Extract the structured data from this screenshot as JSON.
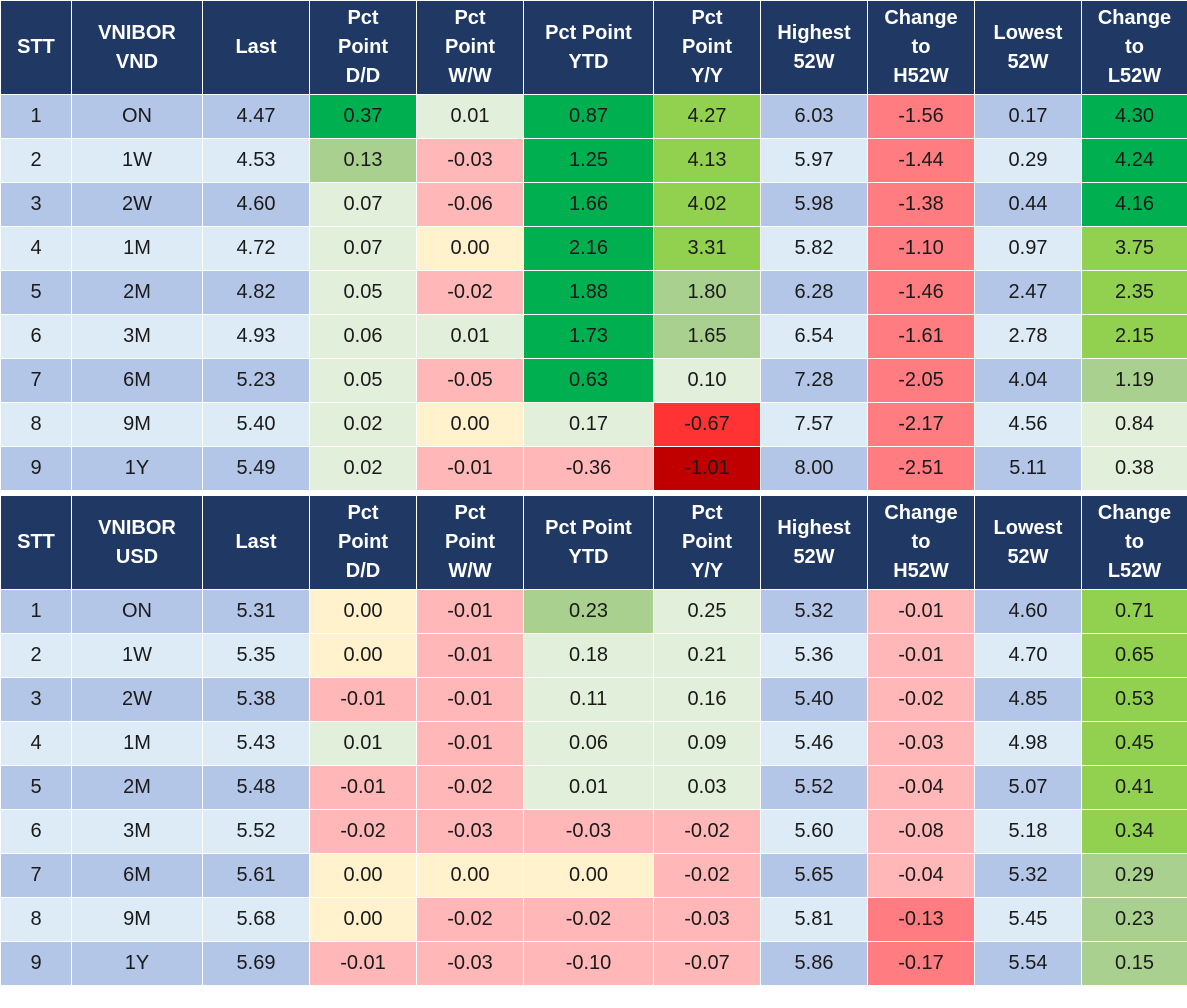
{
  "colors": {
    "header_bg": "#1f3864",
    "label_odd": "#b4c6e7",
    "label_even": "#ddebf7",
    "strong_green": "#00b050",
    "light_green": "#92d050",
    "olive_green": "#a9d08e",
    "pale_green": "#e2efda",
    "neutral_yellow": "#fff2cc",
    "pale_red": "#ffb7b7",
    "red": "#ff7c80",
    "strong_red": "#ff3333",
    "dark_red": "#c00000"
  },
  "tables": [
    {
      "headers": [
        "STT",
        "VNIBOR\nVND",
        "Last",
        "Pct\nPoint\nD/D",
        "Pct\nPoint\nW/W",
        "Pct Point\nYTD",
        "Pct\nPoint\nY/Y",
        "Highest\n52W",
        "Change\nto\nH52W",
        "Lowest\n52W",
        "Change\nto\nL52W"
      ],
      "rows": [
        [
          "1",
          "ON",
          "4.47",
          "0.37",
          "0.01",
          "0.87",
          "4.27",
          "6.03",
          "-1.56",
          "0.17",
          "4.30"
        ],
        [
          "2",
          "1W",
          "4.53",
          "0.13",
          "-0.03",
          "1.25",
          "4.13",
          "5.97",
          "-1.44",
          "0.29",
          "4.24"
        ],
        [
          "3",
          "2W",
          "4.60",
          "0.07",
          "-0.06",
          "1.66",
          "4.02",
          "5.98",
          "-1.38",
          "0.44",
          "4.16"
        ],
        [
          "4",
          "1M",
          "4.72",
          "0.07",
          "0.00",
          "2.16",
          "3.31",
          "5.82",
          "-1.10",
          "0.97",
          "3.75"
        ],
        [
          "5",
          "2M",
          "4.82",
          "0.05",
          "-0.02",
          "1.88",
          "1.80",
          "6.28",
          "-1.46",
          "2.47",
          "2.35"
        ],
        [
          "6",
          "3M",
          "4.93",
          "0.06",
          "0.01",
          "1.73",
          "1.65",
          "6.54",
          "-1.61",
          "2.78",
          "2.15"
        ],
        [
          "7",
          "6M",
          "5.23",
          "0.05",
          "-0.05",
          "0.63",
          "0.10",
          "7.28",
          "-2.05",
          "4.04",
          "1.19"
        ],
        [
          "8",
          "9M",
          "5.40",
          "0.02",
          "0.00",
          "0.17",
          "-0.67",
          "7.57",
          "-2.17",
          "4.56",
          "0.84"
        ],
        [
          "9",
          "1Y",
          "5.49",
          "0.02",
          "-0.01",
          "-0.36",
          "-1.01",
          "8.00",
          "-2.51",
          "5.11",
          "0.38"
        ]
      ],
      "cell_colors": [
        [
          "label_odd",
          "label_odd",
          "label_odd",
          "strong_green",
          "pale_green",
          "strong_green",
          "light_green",
          "label_odd",
          "red",
          "label_odd",
          "strong_green"
        ],
        [
          "label_even",
          "label_even",
          "label_even",
          "olive_green",
          "pale_red",
          "strong_green",
          "light_green",
          "label_even",
          "red",
          "label_even",
          "strong_green"
        ],
        [
          "label_odd",
          "label_odd",
          "label_odd",
          "pale_green",
          "pale_red",
          "strong_green",
          "light_green",
          "label_odd",
          "red",
          "label_odd",
          "strong_green"
        ],
        [
          "label_even",
          "label_even",
          "label_even",
          "pale_green",
          "neutral_yellow",
          "strong_green",
          "light_green",
          "label_even",
          "red",
          "label_even",
          "light_green"
        ],
        [
          "label_odd",
          "label_odd",
          "label_odd",
          "pale_green",
          "pale_red",
          "strong_green",
          "olive_green",
          "label_odd",
          "red",
          "label_odd",
          "light_green"
        ],
        [
          "label_even",
          "label_even",
          "label_even",
          "pale_green",
          "pale_green",
          "strong_green",
          "olive_green",
          "label_even",
          "red",
          "label_even",
          "light_green"
        ],
        [
          "label_odd",
          "label_odd",
          "label_odd",
          "pale_green",
          "pale_red",
          "strong_green",
          "pale_green",
          "label_odd",
          "red",
          "label_odd",
          "olive_green"
        ],
        [
          "label_even",
          "label_even",
          "label_even",
          "pale_green",
          "neutral_yellow",
          "pale_green",
          "strong_red",
          "label_even",
          "red",
          "label_even",
          "pale_green"
        ],
        [
          "label_odd",
          "label_odd",
          "label_odd",
          "pale_green",
          "pale_red",
          "pale_red",
          "dark_red",
          "label_odd",
          "red",
          "label_odd",
          "pale_green"
        ]
      ]
    },
    {
      "headers": [
        "STT",
        "VNIBOR\nUSD",
        "Last",
        "Pct\nPoint\nD/D",
        "Pct\nPoint\nW/W",
        "Pct Point\nYTD",
        "Pct\nPoint\nY/Y",
        "Highest\n52W",
        "Change\nto\nH52W",
        "Lowest\n52W",
        "Change\nto\nL52W"
      ],
      "rows": [
        [
          "1",
          "ON",
          "5.31",
          "0.00",
          "-0.01",
          "0.23",
          "0.25",
          "5.32",
          "-0.01",
          "4.60",
          "0.71"
        ],
        [
          "2",
          "1W",
          "5.35",
          "0.00",
          "-0.01",
          "0.18",
          "0.21",
          "5.36",
          "-0.01",
          "4.70",
          "0.65"
        ],
        [
          "3",
          "2W",
          "5.38",
          "-0.01",
          "-0.01",
          "0.11",
          "0.16",
          "5.40",
          "-0.02",
          "4.85",
          "0.53"
        ],
        [
          "4",
          "1M",
          "5.43",
          "0.01",
          "-0.01",
          "0.06",
          "0.09",
          "5.46",
          "-0.03",
          "4.98",
          "0.45"
        ],
        [
          "5",
          "2M",
          "5.48",
          "-0.01",
          "-0.02",
          "0.01",
          "0.03",
          "5.52",
          "-0.04",
          "5.07",
          "0.41"
        ],
        [
          "6",
          "3M",
          "5.52",
          "-0.02",
          "-0.03",
          "-0.03",
          "-0.02",
          "5.60",
          "-0.08",
          "5.18",
          "0.34"
        ],
        [
          "7",
          "6M",
          "5.61",
          "0.00",
          "0.00",
          "0.00",
          "-0.02",
          "5.65",
          "-0.04",
          "5.32",
          "0.29"
        ],
        [
          "8",
          "9M",
          "5.68",
          "0.00",
          "-0.02",
          "-0.02",
          "-0.03",
          "5.81",
          "-0.13",
          "5.45",
          "0.23"
        ],
        [
          "9",
          "1Y",
          "5.69",
          "-0.01",
          "-0.03",
          "-0.10",
          "-0.07",
          "5.86",
          "-0.17",
          "5.54",
          "0.15"
        ]
      ],
      "cell_colors": [
        [
          "label_odd",
          "label_odd",
          "label_odd",
          "neutral_yellow",
          "pale_red",
          "olive_green",
          "pale_green",
          "label_odd",
          "pale_red",
          "label_odd",
          "light_green"
        ],
        [
          "label_even",
          "label_even",
          "label_even",
          "neutral_yellow",
          "pale_red",
          "pale_green",
          "pale_green",
          "label_even",
          "pale_red",
          "label_even",
          "light_green"
        ],
        [
          "label_odd",
          "label_odd",
          "label_odd",
          "pale_red",
          "pale_red",
          "pale_green",
          "pale_green",
          "label_odd",
          "pale_red",
          "label_odd",
          "light_green"
        ],
        [
          "label_even",
          "label_even",
          "label_even",
          "pale_green",
          "pale_red",
          "pale_green",
          "pale_green",
          "label_even",
          "pale_red",
          "label_even",
          "light_green"
        ],
        [
          "label_odd",
          "label_odd",
          "label_odd",
          "pale_red",
          "pale_red",
          "pale_green",
          "pale_green",
          "label_odd",
          "pale_red",
          "label_odd",
          "light_green"
        ],
        [
          "label_even",
          "label_even",
          "label_even",
          "pale_red",
          "pale_red",
          "pale_red",
          "pale_red",
          "label_even",
          "pale_red",
          "label_even",
          "light_green"
        ],
        [
          "label_odd",
          "label_odd",
          "label_odd",
          "neutral_yellow",
          "neutral_yellow",
          "neutral_yellow",
          "pale_red",
          "label_odd",
          "pale_red",
          "label_odd",
          "olive_green"
        ],
        [
          "label_even",
          "label_even",
          "label_even",
          "neutral_yellow",
          "pale_red",
          "pale_red",
          "pale_red",
          "label_even",
          "red",
          "label_even",
          "olive_green"
        ],
        [
          "label_odd",
          "label_odd",
          "label_odd",
          "pale_red",
          "pale_red",
          "pale_red",
          "pale_red",
          "label_odd",
          "red",
          "label_odd",
          "olive_green"
        ]
      ]
    }
  ]
}
